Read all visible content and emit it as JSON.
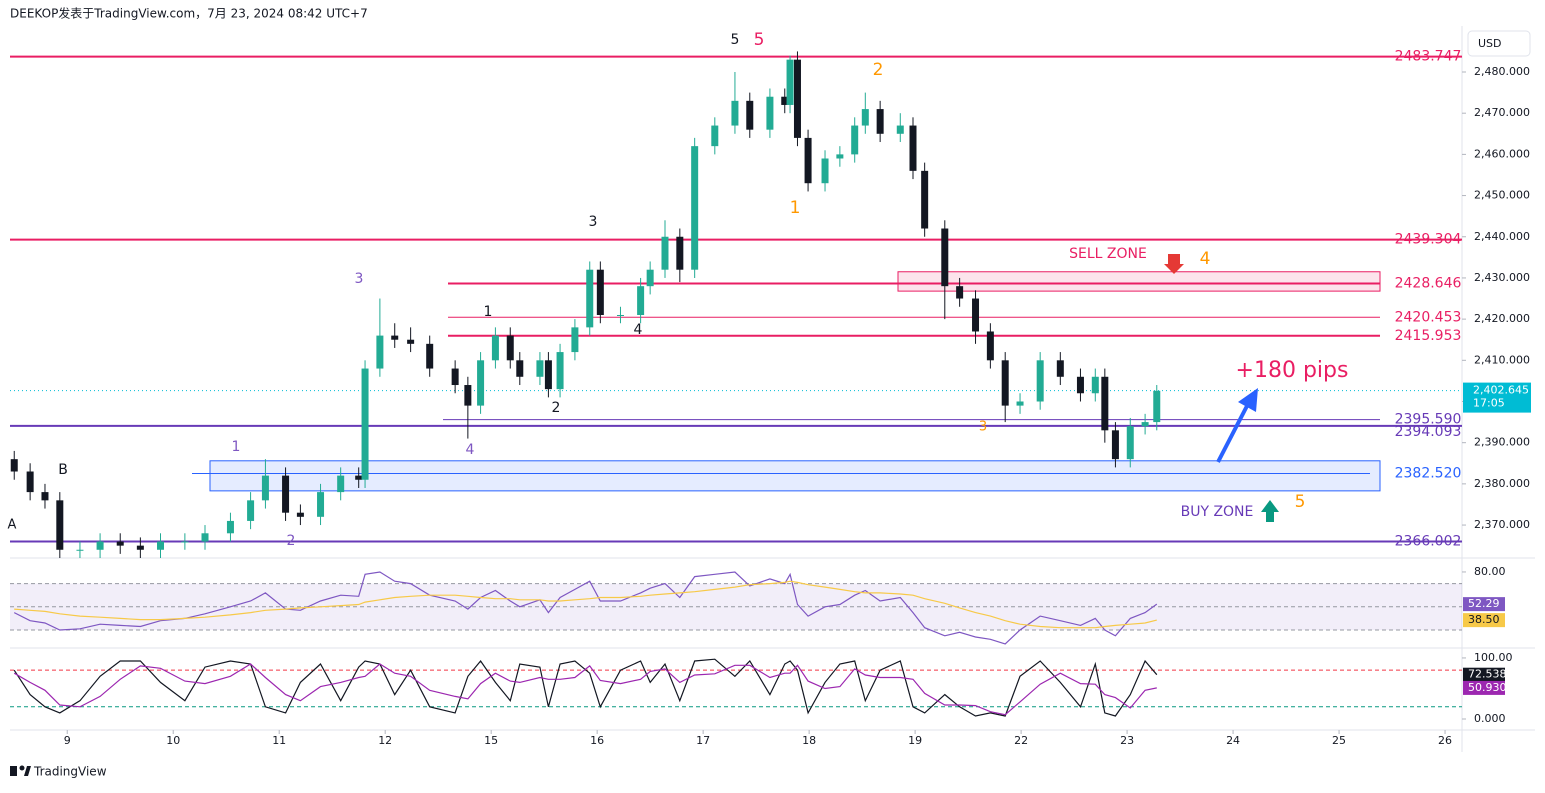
{
  "header": {
    "text": "DEEKOP发表于TradingView.com，7月 23, 2024 08:42 UTC+7",
    "currency": "USD"
  },
  "footer": {
    "brand": "TradingView"
  },
  "chart_data": [
    {
      "type": "candlestick",
      "x": [
        -0.5,
        -0.35,
        -0.21,
        -0.07,
        0.12,
        0.31,
        0.5,
        0.69,
        0.88,
        1.11,
        1.3,
        1.54,
        1.73,
        1.87,
        2.06,
        2.2,
        2.39,
        2.58,
        2.75,
        2.81,
        2.95,
        3.09,
        3.24,
        3.42,
        3.66,
        3.78,
        3.9,
        4.04,
        4.18,
        4.27,
        4.46,
        4.54,
        4.65,
        4.79,
        4.93,
        5.03,
        5.22,
        5.41,
        5.5,
        5.64,
        5.78,
        5.92,
        6.11,
        6.3,
        6.44,
        6.63,
        6.77,
        6.82,
        6.89,
        6.99,
        7.15,
        7.29,
        7.43,
        7.53,
        7.67,
        7.86,
        7.98,
        8.09,
        8.28,
        8.42,
        8.57,
        8.71,
        8.85,
        8.99,
        9.18,
        9.37,
        9.56,
        9.7,
        9.79,
        9.89,
        10.03,
        10.17,
        10.28
      ],
      "open": [
        2386,
        2383,
        2378,
        2376,
        2364,
        2364,
        2366,
        2365,
        2364,
        2366,
        2366,
        2368,
        2371,
        2376,
        2382,
        2373,
        2372,
        2378,
        2382,
        2381,
        2408,
        2416,
        2415,
        2414,
        2408,
        2404,
        2399,
        2410,
        2416,
        2410,
        2406,
        2410,
        2403,
        2412,
        2418,
        2432,
        2421,
        2421,
        2428,
        2432,
        2440,
        2432,
        2462,
        2467,
        2473,
        2466,
        2474,
        2472,
        2483,
        2464,
        2453,
        2459,
        2460,
        2467,
        2471,
        2465,
        2467,
        2456,
        2442,
        2428,
        2425,
        2417,
        2410,
        2399,
        2400,
        2410,
        2406,
        2402,
        2406,
        2393,
        2386,
        2394,
        2395
      ],
      "high": [
        2388,
        2385,
        2380,
        2378,
        2366,
        2368,
        2368,
        2367,
        2368,
        2368,
        2370,
        2373,
        2378,
        2386,
        2384,
        2375,
        2380,
        2384,
        2384,
        2410,
        2425,
        2419,
        2418,
        2416,
        2410,
        2406,
        2412,
        2418,
        2418,
        2412,
        2412,
        2412,
        2414,
        2420,
        2434,
        2434,
        2423,
        2430,
        2434,
        2444,
        2442,
        2464,
        2469,
        2480,
        2475,
        2476,
        2476,
        2484,
        2485,
        2466,
        2461,
        2462,
        2469,
        2475,
        2473,
        2470,
        2469,
        2458,
        2444,
        2430,
        2427,
        2419,
        2412,
        2402,
        2412,
        2412,
        2408,
        2408,
        2408,
        2395,
        2396,
        2397,
        2404
      ],
      "low": [
        2381,
        2376,
        2374,
        2362,
        2362,
        2362,
        2363,
        2362,
        2362,
        2364,
        2364,
        2366,
        2369,
        2374,
        2371,
        2370,
        2370,
        2376,
        2379,
        2379,
        2406,
        2413,
        2412,
        2406,
        2402,
        2391,
        2397,
        2408,
        2408,
        2404,
        2404,
        2401,
        2401,
        2410,
        2416,
        2419,
        2419,
        2419,
        2426,
        2430,
        2429,
        2430,
        2460,
        2465,
        2464,
        2464,
        2470,
        2470,
        2462,
        2451,
        2451,
        2457,
        2458,
        2465,
        2463,
        2463,
        2454,
        2440,
        2420,
        2423,
        2414,
        2408,
        2395,
        2397,
        2398,
        2404,
        2400,
        2400,
        2390,
        2384,
        2384,
        2392,
        2393
      ],
      "close": [
        2383,
        2378,
        2376,
        2364,
        2364,
        2366,
        2365,
        2364,
        2366,
        2366,
        2368,
        2371,
        2376,
        2382,
        2373,
        2372,
        2378,
        2382,
        2381,
        2408,
        2416,
        2415,
        2414,
        2408,
        2404,
        2399,
        2410,
        2416,
        2410,
        2406,
        2410,
        2403,
        2412,
        2418,
        2432,
        2421,
        2421,
        2428,
        2432,
        2440,
        2432,
        2462,
        2467,
        2473,
        2466,
        2474,
        2472,
        2483,
        2464,
        2453,
        2459,
        2460,
        2467,
        2471,
        2465,
        2467,
        2456,
        2442,
        2428,
        2425,
        2417,
        2410,
        2399,
        2400,
        2410,
        2406,
        2402,
        2406,
        2393,
        2386,
        2394,
        2395,
        2402.6
      ],
      "up_color": "#22ab94",
      "down_color": "#131722",
      "xlim": [
        -0.54,
        13.16
      ],
      "xticks": [
        {
          "value": 0,
          "label": "9"
        },
        {
          "value": 1,
          "label": "10"
        },
        {
          "value": 2,
          "label": "11"
        },
        {
          "value": 3,
          "label": "12"
        },
        {
          "value": 4,
          "label": "15"
        },
        {
          "value": 5,
          "label": "16"
        },
        {
          "value": 6,
          "label": "17"
        },
        {
          "value": 7,
          "label": "18"
        },
        {
          "value": 8,
          "label": "19"
        },
        {
          "value": 9,
          "label": "22"
        },
        {
          "value": 10,
          "label": "23"
        },
        {
          "value": 11,
          "label": "24"
        },
        {
          "value": 12,
          "label": "25"
        },
        {
          "value": 13,
          "label": "26"
        }
      ],
      "ylim": [
        2362,
        2490.2
      ],
      "yticks": [
        {
          "value": 2370,
          "label": "2,370.000"
        },
        {
          "value": 2380,
          "label": "2,380.000"
        },
        {
          "value": 2390,
          "label": "2,390.000"
        },
        {
          "value": 2400,
          "label": "2,400.000"
        },
        {
          "value": 2410,
          "label": "2,410.000"
        },
        {
          "value": 2420,
          "label": "2,420.000"
        },
        {
          "value": 2430,
          "label": "2,430.000"
        },
        {
          "value": 2440,
          "label": "2,440.000"
        },
        {
          "value": 2450,
          "label": "2,450.000"
        },
        {
          "value": 2460,
          "label": "2,460.000"
        },
        {
          "value": 2470,
          "label": "2,470.000"
        },
        {
          "value": 2480,
          "label": "2,480.000"
        }
      ],
      "levels": [
        {
          "value": 2483.747,
          "label": "2483.747",
          "color": "#e91e63"
        },
        {
          "value": 2439.304,
          "label": "2439.304",
          "color": "#e91e63"
        },
        {
          "value": 2428.646,
          "label": "2428.646",
          "color": "#e91e63"
        },
        {
          "value": 2420.453,
          "label": "2420.453",
          "color": "#e91e63"
        },
        {
          "value": 2415.953,
          "label": "2415.953",
          "color": "#e91e63"
        },
        {
          "value": 2395.59,
          "label": "2395.590",
          "color": "#673ab7"
        },
        {
          "value": 2394.093,
          "label": "2394.093",
          "color": "#673ab7"
        },
        {
          "value": 2382.52,
          "label": "2382.520",
          "color": "#2962ff"
        },
        {
          "value": 2366.002,
          "label": "2366.002",
          "color": "#673ab7"
        }
      ],
      "zones": [
        {
          "label": "SELL ZONE",
          "top": 2431.5,
          "bottom": 2426.8,
          "color": "#e91e63",
          "label_color": "#e91e63"
        },
        {
          "label": "BUY ZONE",
          "top": 2385.6,
          "bottom": 2378.3,
          "color": "#2962ff",
          "label_color": "#673ab7"
        }
      ],
      "annotations": [
        {
          "text": "5",
          "color": "#131722"
        },
        {
          "text": "5",
          "color": "#e91e63"
        },
        {
          "text": "2",
          "color": "#ff9800"
        },
        {
          "text": "1",
          "color": "#ff9800"
        },
        {
          "text": "3",
          "color": "#131722"
        },
        {
          "text": "3",
          "color": "#7e57c2"
        },
        {
          "text": "1",
          "color": "#131722"
        },
        {
          "text": "4",
          "color": "#131722"
        },
        {
          "text": "2",
          "color": "#131722"
        },
        {
          "text": "4",
          "color": "#7e57c2"
        },
        {
          "text": "1",
          "color": "#7e57c2"
        },
        {
          "text": "2",
          "color": "#7e57c2"
        },
        {
          "text": "3",
          "color": "#ff9800"
        },
        {
          "text": "4",
          "color": "#ff9800"
        },
        {
          "text": "5",
          "color": "#ff9800"
        },
        {
          "text": "B",
          "color": "#131722"
        },
        {
          "text": "A",
          "color": "#131722"
        },
        {
          "text": "+180 pips",
          "color": "#e91e63"
        }
      ],
      "last_price": {
        "value": 2402.645,
        "label": "2,402.645",
        "countdown": "17:05",
        "color": "#00bcd4"
      }
    },
    {
      "type": "line",
      "x": [
        -0.5,
        -0.35,
        -0.21,
        -0.07,
        0.12,
        0.31,
        0.5,
        0.69,
        0.88,
        1.11,
        1.3,
        1.54,
        1.73,
        1.87,
        2.06,
        2.2,
        2.39,
        2.58,
        2.75,
        2.81,
        2.95,
        3.09,
        3.24,
        3.42,
        3.66,
        3.78,
        3.9,
        4.04,
        4.18,
        4.27,
        4.46,
        4.54,
        4.65,
        4.79,
        4.93,
        5.03,
        5.22,
        5.41,
        5.5,
        5.64,
        5.78,
        5.92,
        6.11,
        6.3,
        6.44,
        6.63,
        6.77,
        6.82,
        6.89,
        6.99,
        7.15,
        7.29,
        7.43,
        7.53,
        7.67,
        7.86,
        7.98,
        8.09,
        8.28,
        8.42,
        8.57,
        8.71,
        8.85,
        8.99,
        9.18,
        9.37,
        9.56,
        9.7,
        9.79,
        9.89,
        10.03,
        10.17,
        10.28
      ],
      "xlim": [
        -0.54,
        13.16
      ],
      "ylim": [
        14.5,
        90.3
      ],
      "yticks": [
        {
          "value": 80,
          "label": "80.00"
        }
      ],
      "hlines": [
        {
          "value": 70,
          "color": "#9598a1"
        },
        {
          "value": 50,
          "color": "#9598a1"
        },
        {
          "value": 30,
          "color": "#9598a1"
        }
      ],
      "band_color": "rgba(126,87,194,0.1)",
      "series": [
        {
          "color": "#7e57c2",
          "last_label": "52.29",
          "values": [
            45,
            38,
            36,
            30,
            31,
            35,
            34,
            33,
            38,
            40,
            44,
            50,
            55,
            62,
            48,
            47,
            55,
            60,
            59,
            78,
            80,
            72,
            70,
            60,
            55,
            48,
            58,
            64,
            55,
            50,
            56,
            45,
            58,
            65,
            72,
            55,
            55,
            62,
            66,
            70,
            58,
            76,
            78,
            80,
            68,
            74,
            70,
            78,
            52,
            42,
            50,
            52,
            60,
            64,
            55,
            58,
            45,
            32,
            25,
            28,
            24,
            22,
            18,
            30,
            42,
            38,
            34,
            40,
            30,
            25,
            40,
            45,
            52.29
          ]
        },
        {
          "color": "#f7c948",
          "last_label": "38.50",
          "values": [
            48,
            47,
            46,
            44,
            42,
            41,
            40,
            39,
            39,
            40,
            41,
            43,
            45,
            47,
            48,
            49,
            50,
            51,
            52,
            54,
            56,
            58,
            59,
            60,
            60,
            59,
            58,
            57,
            57,
            56,
            56,
            55,
            55,
            56,
            57,
            58,
            58,
            59,
            60,
            61,
            62,
            63,
            65,
            67,
            69,
            70,
            71,
            72,
            71,
            69,
            67,
            65,
            63,
            62,
            62,
            61,
            60,
            57,
            53,
            49,
            45,
            42,
            38,
            35,
            33,
            32,
            32,
            32,
            33,
            34,
            35,
            36,
            38.5
          ]
        }
      ]
    },
    {
      "type": "line",
      "x": [
        -0.5,
        -0.35,
        -0.21,
        -0.07,
        0.12,
        0.31,
        0.5,
        0.69,
        0.88,
        1.11,
        1.3,
        1.54,
        1.73,
        1.87,
        2.06,
        2.2,
        2.39,
        2.58,
        2.75,
        2.81,
        2.95,
        3.09,
        3.24,
        3.42,
        3.66,
        3.78,
        3.9,
        4.04,
        4.18,
        4.27,
        4.46,
        4.54,
        4.65,
        4.79,
        4.93,
        5.03,
        5.22,
        5.41,
        5.5,
        5.64,
        5.78,
        5.92,
        6.11,
        6.3,
        6.44,
        6.63,
        6.77,
        6.82,
        6.89,
        6.99,
        7.15,
        7.29,
        7.43,
        7.53,
        7.67,
        7.86,
        7.98,
        8.09,
        8.28,
        8.42,
        8.57,
        8.71,
        8.85,
        8.99,
        9.18,
        9.37,
        9.56,
        9.7,
        9.79,
        9.89,
        10.03,
        10.17,
        10.28
      ],
      "xlim": [
        -0.54,
        13.16
      ],
      "ylim": [
        -18,
        113
      ],
      "yticks": [
        {
          "value": 100,
          "label": "100.00"
        },
        {
          "value": 0,
          "label": "0.000"
        }
      ],
      "hlines": [
        {
          "value": 80,
          "color": "#f23645"
        },
        {
          "value": 20,
          "color": "#089981"
        }
      ],
      "series": [
        {
          "color": "#131722",
          "last_label": "72.538",
          "values": [
            80,
            40,
            20,
            10,
            30,
            70,
            95,
            95,
            60,
            30,
            85,
            95,
            90,
            20,
            10,
            60,
            90,
            30,
            85,
            95,
            90,
            40,
            80,
            20,
            10,
            70,
            95,
            60,
            30,
            90,
            85,
            20,
            90,
            95,
            75,
            20,
            80,
            95,
            60,
            90,
            30,
            95,
            98,
            70,
            95,
            40,
            90,
            95,
            80,
            10,
            60,
            90,
            95,
            30,
            80,
            95,
            20,
            10,
            40,
            20,
            5,
            10,
            5,
            70,
            95,
            60,
            20,
            90,
            10,
            5,
            40,
            95,
            72.538
          ]
        },
        {
          "color": "#9c27b0",
          "last_label": "50.930",
          "values": [
            75,
            60,
            47,
            23,
            20,
            37,
            65,
            87,
            83,
            62,
            58,
            70,
            90,
            68,
            40,
            30,
            53,
            60,
            68,
            70,
            90,
            75,
            70,
            47,
            37,
            33,
            58,
            75,
            62,
            60,
            68,
            65,
            65,
            68,
            87,
            63,
            58,
            65,
            78,
            82,
            60,
            72,
            74,
            88,
            88,
            68,
            75,
            75,
            88,
            62,
            50,
            53,
            82,
            72,
            68,
            68,
            65,
            42,
            23,
            23,
            22,
            12,
            7,
            28,
            57,
            75,
            58,
            57,
            40,
            35,
            18,
            47,
            50.93
          ]
        }
      ]
    }
  ]
}
